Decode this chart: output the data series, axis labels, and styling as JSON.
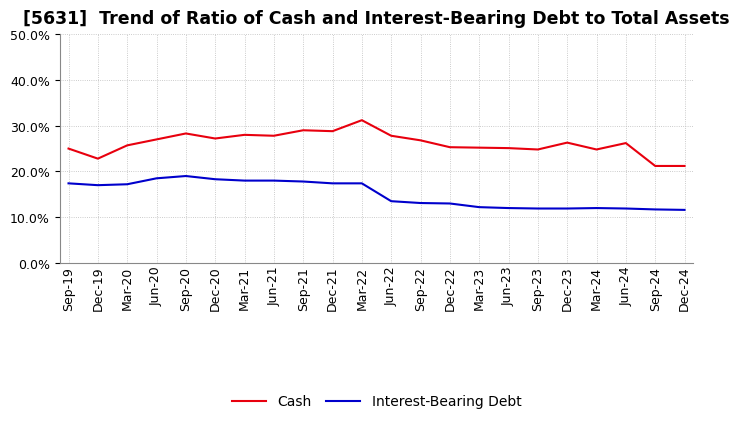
{
  "title": "[5631]  Trend of Ratio of Cash and Interest-Bearing Debt to Total Assets",
  "x_labels": [
    "Sep-19",
    "Dec-19",
    "Mar-20",
    "Jun-20",
    "Sep-20",
    "Dec-20",
    "Mar-21",
    "Jun-21",
    "Sep-21",
    "Dec-21",
    "Mar-22",
    "Jun-22",
    "Sep-22",
    "Dec-22",
    "Mar-23",
    "Jun-23",
    "Sep-23",
    "Dec-23",
    "Mar-24",
    "Jun-24",
    "Sep-24",
    "Dec-24"
  ],
  "cash": [
    0.25,
    0.228,
    0.257,
    0.27,
    0.283,
    0.272,
    0.28,
    0.278,
    0.29,
    0.288,
    0.312,
    0.278,
    0.268,
    0.253,
    0.252,
    0.251,
    0.248,
    0.263,
    0.248,
    0.262,
    0.212,
    0.212
  ],
  "debt": [
    0.174,
    0.17,
    0.172,
    0.185,
    0.19,
    0.183,
    0.18,
    0.18,
    0.178,
    0.174,
    0.174,
    0.135,
    0.131,
    0.13,
    0.122,
    0.12,
    0.119,
    0.119,
    0.12,
    0.119,
    0.117,
    0.116
  ],
  "cash_color": "#E8000E",
  "debt_color": "#0000CC",
  "background_color": "#FFFFFF",
  "plot_bg_color": "#FFFFFF",
  "grid_color": "#BBBBBB",
  "ylim": [
    0.0,
    0.5
  ],
  "yticks": [
    0.0,
    0.1,
    0.2,
    0.3,
    0.4,
    0.5
  ],
  "legend_cash": "Cash",
  "legend_debt": "Interest-Bearing Debt",
  "title_fontsize": 12.5,
  "tick_fontsize": 9,
  "legend_fontsize": 10
}
